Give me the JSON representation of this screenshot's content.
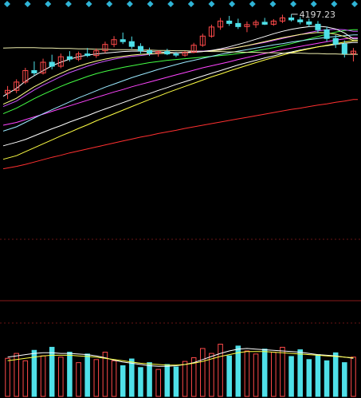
{
  "colors": {
    "background": "#000000",
    "candle_up": "#ff4a4a",
    "candle_down": "#4fe0e8",
    "marker": "#2fb4d6",
    "separator": "#8a1a1a",
    "grid": "#6a1414",
    "label_text": "#d8d8d8",
    "ma_colors": [
      "#ffffff",
      "#ffff44",
      "#ff44ff",
      "#44ff44",
      "#9be9ff",
      "#f0f0b0",
      "#cc55ff",
      "#ff3030",
      "#ffff88",
      "#ffffff"
    ]
  },
  "markers": {
    "icon": "diamond-icon",
    "count": 18
  },
  "chart_data": [
    {
      "type": "candlestick",
      "panel": "price",
      "annotations": [
        {
          "text": "4197.23",
          "kind": "period-high"
        }
      ],
      "series": [
        {
          "values": [
            3865,
            3874,
            3881,
            3890,
            3899,
            3908,
            3916,
            3925,
            3933,
            3941,
            3950,
            3958,
            3966,
            3974,
            3982,
            3990,
            3997,
            4005,
            4012,
            4020,
            4027,
            4034,
            4041,
            4048,
            4055,
            4062,
            4069,
            4075,
            4081,
            4087,
            4092,
            4098,
            4102,
            4107,
            4111,
            4115,
            4118,
            4121,
            4124,
            4126
          ]
        },
        {
          "values": [
            3831,
            3840,
            3850,
            3860,
            3870,
            3880,
            3890,
            3899,
            3909,
            3918,
            3928,
            3937,
            3946,
            3955,
            3964,
            3973,
            3982,
            3990,
            3999,
            4007,
            4015,
            4023,
            4031,
            4039,
            4046,
            4054,
            4061,
            4068,
            4075,
            4082,
            4088,
            4094,
            4100,
            4105,
            4110,
            4115,
            4119,
            4123,
            4127,
            4130
          ]
        },
        {
          "values": [
            3917,
            3924,
            3931,
            3938,
            3945,
            3952,
            3959,
            3966,
            3973,
            3980,
            3987,
            3994,
            4001,
            4007,
            4014,
            4020,
            4026,
            4032,
            4038,
            4044,
            4050,
            4056,
            4062,
            4067,
            4072,
            4077,
            4083,
            4088,
            4093,
            4098,
            4103,
            4108,
            4112,
            4116,
            4120,
            4124,
            4128,
            4132,
            4135,
            4138
          ]
        },
        {
          "values": [
            3946,
            3960,
            3972,
            3984,
            3995,
            4005,
            4015,
            4024,
            4032,
            4040,
            4047,
            4053,
            4058,
            4063,
            4067,
            4071,
            4075,
            4078,
            4081,
            4083,
            4085,
            4087,
            4089,
            4091,
            4093,
            4095,
            4098,
            4101,
            4105,
            4109,
            4113,
            4118,
            4123,
            4129,
            4135,
            4141,
            4147,
            4152,
            4156,
            4158
          ]
        },
        {
          "values": [
            3902,
            3913,
            3924,
            3935,
            3946,
            3956,
            3966,
            3976,
            3986,
            3995,
            4004,
            4013,
            4021,
            4029,
            4037,
            4044,
            4051,
            4058,
            4064,
            4070,
            4076,
            4081,
            4086,
            4091,
            4096,
            4100,
            4104,
            4108,
            4112,
            4116,
            4120,
            4123,
            4127,
            4130,
            4133,
            4136,
            4139,
            4141,
            4143,
            4145
          ]
        },
        {
          "values": [
            4112,
            4113,
            4113,
            4113,
            4112,
            4112,
            4111,
            4111,
            4110,
            4110,
            4109,
            4109,
            4108,
            4108,
            4108,
            4107,
            4107,
            4106,
            4106,
            4105,
            4105,
            4104,
            4104,
            4103,
            4103,
            4102,
            4102,
            4101,
            4101,
            4100,
            4100,
            4099,
            4099,
            4099,
            4098,
            4098,
            4097,
            4097,
            4096,
            4096
          ]
        },
        {
          "values": [
            3964,
            3978,
            3992,
            4006,
            4018,
            4029,
            4040,
            4050,
            4058,
            4066,
            4073,
            4079,
            4084,
            4088,
            4091,
            4093,
            4096,
            4098,
            4099,
            4100,
            4101,
            4103,
            4104,
            4106,
            4108,
            4111,
            4114,
            4118,
            4122,
            4126,
            4131,
            4136,
            4141,
            4146,
            4151,
            4155,
            4158,
            4159,
            4158,
            4154
          ]
        },
        {
          "values": [
            3807,
            3813,
            3818,
            3824,
            3830,
            3836,
            3841,
            3847,
            3852,
            3857,
            3862,
            3867,
            3872,
            3877,
            3882,
            3887,
            3891,
            3896,
            3900,
            3904,
            3909,
            3913,
            3917,
            3921,
            3925,
            3929,
            3933,
            3937,
            3941,
            3945,
            3949,
            3953,
            3957,
            3960,
            3964,
            3968,
            3971,
            3975,
            3978,
            3982
          ]
        },
        {
          "values": [
            3970,
            3985,
            4000,
            4014,
            4026,
            4038,
            4048,
            4058,
            4066,
            4073,
            4079,
            4084,
            4088,
            4091,
            4094,
            4096,
            4097,
            4098,
            4099,
            4100,
            4101,
            4102,
            4103,
            4105,
            4107,
            4110,
            4114,
            4118,
            4123,
            4128,
            4133,
            4138,
            4142,
            4146,
            4149,
            4151,
            4150,
            4147,
            4141,
            4131
          ]
        },
        {
          "values": [
            3990,
            4010,
            4028,
            4042,
            4055,
            4067,
            4076,
            4084,
            4090,
            4094,
            4097,
            4099,
            4101,
            4103,
            4104,
            4104,
            4103,
            4102,
            4101,
            4100,
            4100,
            4101,
            4103,
            4106,
            4110,
            4115,
            4121,
            4127,
            4134,
            4141,
            4148,
            4154,
            4159,
            4163,
            4166,
            4167,
            4165,
            4160,
            4150,
            4135
          ]
        }
      ],
      "ohlc": [
        {
          "open": 3998,
          "high": 4016,
          "low": 3983,
          "close": 4005
        },
        {
          "open": 4005,
          "high": 4033,
          "low": 3998,
          "close": 4026
        },
        {
          "open": 4026,
          "high": 4062,
          "low": 4021,
          "close": 4055
        },
        {
          "open": 4055,
          "high": 4078,
          "low": 4042,
          "close": 4049
        },
        {
          "open": 4049,
          "high": 4085,
          "low": 4045,
          "close": 4076
        },
        {
          "open": 4076,
          "high": 4095,
          "low": 4058,
          "close": 4066
        },
        {
          "open": 4066,
          "high": 4098,
          "low": 4061,
          "close": 4090
        },
        {
          "open": 4090,
          "high": 4104,
          "low": 4078,
          "close": 4084
        },
        {
          "open": 4084,
          "high": 4103,
          "low": 4079,
          "close": 4097
        },
        {
          "open": 4097,
          "high": 4112,
          "low": 4089,
          "close": 4093
        },
        {
          "open": 4093,
          "high": 4111,
          "low": 4087,
          "close": 4105
        },
        {
          "open": 4105,
          "high": 4128,
          "low": 4099,
          "close": 4121
        },
        {
          "open": 4121,
          "high": 4142,
          "low": 4114,
          "close": 4133
        },
        {
          "open": 4133,
          "high": 4151,
          "low": 4122,
          "close": 4128
        },
        {
          "open": 4128,
          "high": 4141,
          "low": 4110,
          "close": 4116
        },
        {
          "open": 4116,
          "high": 4124,
          "low": 4098,
          "close": 4105
        },
        {
          "open": 4105,
          "high": 4113,
          "low": 4092,
          "close": 4099
        },
        {
          "open": 4099,
          "high": 4106,
          "low": 4090,
          "close": 4103
        },
        {
          "open": 4103,
          "high": 4110,
          "low": 4094,
          "close": 4097
        },
        {
          "open": 4097,
          "high": 4102,
          "low": 4089,
          "close": 4094
        },
        {
          "open": 4094,
          "high": 4104,
          "low": 4090,
          "close": 4101
        },
        {
          "open": 4101,
          "high": 4125,
          "low": 4099,
          "close": 4119
        },
        {
          "open": 4119,
          "high": 4148,
          "low": 4115,
          "close": 4142
        },
        {
          "open": 4142,
          "high": 4171,
          "low": 4138,
          "close": 4165
        },
        {
          "open": 4165,
          "high": 4188,
          "low": 4158,
          "close": 4180
        },
        {
          "open": 4180,
          "high": 4193,
          "low": 4168,
          "close": 4174
        },
        {
          "open": 4174,
          "high": 4186,
          "low": 4160,
          "close": 4166
        },
        {
          "open": 4166,
          "high": 4179,
          "low": 4152,
          "close": 4171
        },
        {
          "open": 4171,
          "high": 4183,
          "low": 4163,
          "close": 4177
        },
        {
          "open": 4177,
          "high": 4188,
          "low": 4170,
          "close": 4172
        },
        {
          "open": 4172,
          "high": 4185,
          "low": 4168,
          "close": 4180
        },
        {
          "open": 4180,
          "high": 4196,
          "low": 4175,
          "close": 4188
        },
        {
          "open": 4188,
          "high": 4197.23,
          "low": 4179,
          "close": 4183
        },
        {
          "open": 4183,
          "high": 4190,
          "low": 4172,
          "close": 4178
        },
        {
          "open": 4178,
          "high": 4186,
          "low": 4165,
          "close": 4172
        },
        {
          "open": 4172,
          "high": 4180,
          "low": 4150,
          "close": 4158
        },
        {
          "open": 4158,
          "high": 4166,
          "low": 4128,
          "close": 4136
        },
        {
          "open": 4136,
          "high": 4145,
          "low": 4112,
          "close": 4122
        },
        {
          "open": 4122,
          "high": 4131,
          "low": 4088,
          "close": 4098
        },
        {
          "open": 4098,
          "high": 4112,
          "low": 4078,
          "close": 4104
        }
      ]
    },
    {
      "type": "bar",
      "panel": "volume",
      "series": [
        {
          "values": [
            64,
            66,
            68,
            70,
            71,
            71,
            70,
            70,
            69,
            68,
            66,
            63,
            59,
            56,
            54,
            52,
            50,
            49,
            49,
            50,
            52,
            55,
            60,
            65,
            70,
            74,
            77,
            78,
            77,
            76,
            75,
            74,
            73,
            72,
            70,
            68,
            67,
            66,
            64,
            62
          ]
        },
        {
          "values": [
            58,
            60,
            62,
            64,
            66,
            67,
            67,
            67,
            66,
            65,
            64,
            62,
            60,
            58,
            56,
            54,
            53,
            52,
            51,
            51,
            52,
            54,
            57,
            61,
            65,
            68,
            71,
            73,
            73,
            73,
            72,
            71,
            70,
            69,
            68,
            67,
            66,
            65,
            64,
            63
          ]
        }
      ],
      "values": [
        62,
        70,
        58,
        75,
        66,
        80,
        64,
        72,
        55,
        69,
        60,
        72,
        58,
        50,
        61,
        47,
        55,
        44,
        52,
        48,
        57,
        63,
        78,
        70,
        85,
        66,
        82,
        74,
        69,
        77,
        72,
        80,
        65,
        76,
        60,
        68,
        58,
        71,
        55,
        64
      ],
      "up": [
        true,
        true,
        true,
        false,
        true,
        false,
        true,
        false,
        true,
        false,
        true,
        true,
        true,
        false,
        false,
        false,
        false,
        true,
        false,
        false,
        true,
        true,
        true,
        true,
        true,
        false,
        false,
        true,
        true,
        false,
        true,
        true,
        false,
        false,
        false,
        false,
        false,
        false,
        false,
        true
      ]
    }
  ],
  "price_label": "4197.23"
}
